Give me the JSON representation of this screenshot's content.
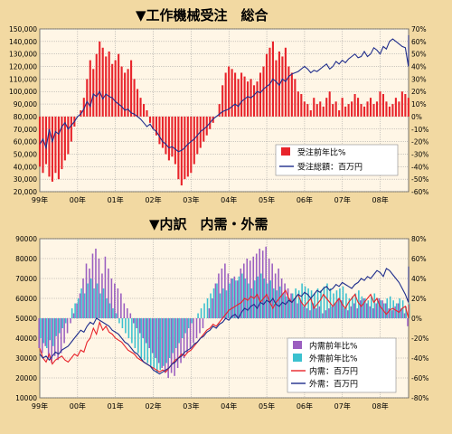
{
  "colors": {
    "background": "#f2d9a2",
    "plot_bg": "#fff6e6",
    "grid": "#999999",
    "red_bar": "#e8242b",
    "navy_line": "#1f2d8c",
    "purple_bar": "#9b5fc0",
    "cyan_bar": "#3bc1cf",
    "red_line": "#e8242b"
  },
  "chart_data": [
    {
      "type": "bar",
      "title": "▼工作機械受注　総合",
      "x_labels": [
        "99年",
        "00年",
        "01年",
        "02年",
        "03年",
        "04年",
        "05年",
        "06年",
        "07年",
        "08年"
      ],
      "x_range": [
        1999.0,
        2008.75
      ],
      "y_left_ticks": [
        "150,000",
        "140,000",
        "130,000",
        "120,000",
        "110,000",
        "100,000",
        "90,000",
        "80,000",
        "70,000",
        "60,000",
        "50,000",
        "40,000",
        "30,000",
        "20,000"
      ],
      "y_left_range": [
        20000,
        150000
      ],
      "y_right_ticks": [
        "70%",
        "60%",
        "50%",
        "40%",
        "30%",
        "20%",
        "10%",
        "0%",
        "-10%",
        "-20%",
        "-30%",
        "-40%",
        "-50%",
        "-60%"
      ],
      "y_right_range": [
        -60,
        70
      ],
      "legend": [
        "受注前年比%",
        "受注総額：百万円"
      ],
      "series": [
        {
          "name": "受注前年比%",
          "kind": "bar",
          "axis": "right",
          "start": 1999.0,
          "step": 0.0833,
          "values": [
            -40,
            -45,
            -38,
            -48,
            -52,
            -45,
            -50,
            -42,
            -35,
            -30,
            -20,
            -8,
            0,
            5,
            15,
            30,
            45,
            38,
            50,
            60,
            55,
            48,
            52,
            42,
            45,
            50,
            40,
            35,
            38,
            45,
            30,
            22,
            15,
            10,
            5,
            -5,
            -10,
            -15,
            -22,
            -25,
            -30,
            -35,
            -32,
            -38,
            -50,
            -55,
            -50,
            -48,
            -45,
            -38,
            -30,
            -25,
            -20,
            -15,
            -10,
            -5,
            0,
            10,
            25,
            35,
            40,
            38,
            35,
            30,
            35,
            32,
            28,
            30,
            25,
            28,
            35,
            40,
            50,
            55,
            60,
            45,
            52,
            48,
            55,
            40,
            35,
            30,
            20,
            18,
            12,
            10,
            5,
            15,
            10,
            12,
            8,
            15,
            20,
            10,
            12,
            5,
            15,
            8,
            10,
            12,
            18,
            15,
            10,
            8,
            12,
            15,
            10,
            12,
            20,
            18,
            12,
            8,
            10,
            15,
            12,
            20,
            18,
            15,
            10,
            -5,
            5,
            2,
            5,
            8,
            3
          ]
        },
        {
          "name": "受注総額：百万円",
          "kind": "line",
          "axis": "left",
          "start": 1999.0,
          "step": 0.0833,
          "values": [
            58000,
            62000,
            55000,
            70000,
            60000,
            68000,
            66000,
            72000,
            75000,
            70000,
            73000,
            76000,
            80000,
            82000,
            86000,
            92000,
            88000,
            98000,
            96000,
            100000,
            94000,
            98000,
            96000,
            95000,
            92000,
            90000,
            88000,
            85000,
            86000,
            83000,
            82000,
            80000,
            78000,
            75000,
            72000,
            74000,
            70000,
            68000,
            64000,
            60000,
            58000,
            55000,
            56000,
            54000,
            52000,
            53000,
            55000,
            58000,
            60000,
            62000,
            65000,
            68000,
            70000,
            72000,
            75000,
            78000,
            80000,
            82000,
            84000,
            85000,
            86000,
            88000,
            90000,
            88000,
            92000,
            94000,
            96000,
            95000,
            97000,
            100000,
            99000,
            102000,
            104000,
            106000,
            110000,
            108000,
            105000,
            110000,
            108000,
            112000,
            114000,
            115000,
            116000,
            118000,
            120000,
            118000,
            115000,
            117000,
            116000,
            118000,
            120000,
            122000,
            118000,
            120000,
            124000,
            122000,
            125000,
            123000,
            126000,
            128000,
            130000,
            127000,
            128000,
            132000,
            128000,
            130000,
            135000,
            133000,
            130000,
            136000,
            134000,
            140000,
            142000,
            140000,
            138000,
            136000,
            135000,
            120000,
            130000,
            145000
          ]
        }
      ]
    },
    {
      "type": "bar",
      "title": "▼内訳　内需・外需",
      "x_labels": [
        "99年",
        "00年",
        "01年",
        "02年",
        "03年",
        "04年",
        "05年",
        "06年",
        "07年",
        "08年"
      ],
      "x_range": [
        1999.0,
        2008.75
      ],
      "y_left_ticks": [
        "90000",
        "80000",
        "70000",
        "60000",
        "50000",
        "40000",
        "30000",
        "20000",
        "10000"
      ],
      "y_left_range": [
        10000,
        90000
      ],
      "y_right_ticks": [
        "80%",
        "60%",
        "40%",
        "20%",
        "0%",
        "-20%",
        "-40%",
        "-60%",
        "-80%"
      ],
      "y_right_range": [
        -80,
        80
      ],
      "legend": [
        "内需前年比%",
        "外需前年比%",
        "内需：百万円",
        "外需：百万円"
      ],
      "series": [
        {
          "name": "内需前年比%",
          "kind": "bar",
          "axis": "right",
          "start": 1999.0,
          "step": 0.0833,
          "values": [
            -30,
            -35,
            -28,
            -40,
            -45,
            -38,
            -42,
            -35,
            -25,
            -15,
            -5,
            5,
            15,
            25,
            40,
            55,
            50,
            65,
            70,
            60,
            45,
            62,
            50,
            40,
            35,
            30,
            25,
            15,
            10,
            5,
            -5,
            -10,
            -15,
            -20,
            -25,
            -30,
            -35,
            -40,
            -45,
            -50,
            -55,
            -60,
            -55,
            -58,
            -50,
            -45,
            -40,
            -35,
            -30,
            -25,
            -20,
            -15,
            -10,
            0,
            10,
            20,
            35,
            45,
            50,
            55,
            45,
            40,
            42,
            38,
            50,
            55,
            60,
            58,
            62,
            65,
            70,
            68,
            72,
            60,
            55,
            45,
            50,
            40,
            35,
            30,
            25,
            20,
            15,
            18,
            12,
            10,
            8,
            15,
            10,
            12,
            5,
            8,
            10,
            12,
            15,
            20,
            18,
            10,
            8,
            12,
            15,
            10,
            18,
            20,
            15,
            12,
            10,
            15,
            20,
            18,
            15,
            10,
            8,
            12,
            15,
            10,
            5,
            -8,
            5,
            -5,
            3,
            -2
          ]
        },
        {
          "name": "外需前年比%",
          "kind": "bar",
          "axis": "right",
          "start": 1999.0,
          "step": 0.0833,
          "values": [
            -20,
            -25,
            -30,
            -22,
            -28,
            -18,
            -15,
            -10,
            -5,
            0,
            10,
            15,
            20,
            30,
            25,
            35,
            40,
            30,
            35,
            25,
            30,
            20,
            15,
            10,
            5,
            -5,
            -10,
            -15,
            -20,
            -25,
            -30,
            -35,
            -40,
            -42,
            -45,
            -48,
            -50,
            -55,
            -52,
            -48,
            -45,
            -40,
            -35,
            -30,
            -25,
            -20,
            -15,
            -10,
            -5,
            0,
            5,
            10,
            15,
            20,
            25,
            30,
            35,
            25,
            30,
            28,
            35,
            40,
            38,
            42,
            45,
            40,
            35,
            30,
            38,
            42,
            45,
            40,
            35,
            38,
            30,
            28,
            32,
            25,
            22,
            20,
            25,
            30,
            28,
            35,
            32,
            30,
            28,
            25,
            30,
            28,
            32,
            35,
            30,
            25,
            28,
            30,
            32,
            25,
            20,
            22,
            25,
            28,
            22,
            20,
            18,
            22,
            25,
            20,
            18,
            15,
            20,
            22,
            18,
            15,
            20,
            18,
            12,
            15,
            10,
            12
          ]
        },
        {
          "name": "内需：百万円",
          "kind": "line",
          "axis": "left",
          "start": 1999.0,
          "step": 0.0833,
          "values": [
            35000,
            30000,
            28000,
            32000,
            27000,
            29000,
            30000,
            31000,
            29000,
            28000,
            30000,
            32000,
            31000,
            34000,
            33000,
            38000,
            40000,
            45000,
            42000,
            48000,
            44000,
            46000,
            43000,
            42000,
            40000,
            39000,
            38000,
            36000,
            34000,
            33000,
            32000,
            30000,
            29000,
            28000,
            27000,
            26000,
            25000,
            24000,
            23000,
            24000,
            23000,
            25000,
            27000,
            29000,
            30000,
            32000,
            31000,
            33000,
            34000,
            36000,
            38000,
            40000,
            42000,
            44000,
            45000,
            47000,
            46000,
            48000,
            50000,
            52000,
            54000,
            55000,
            56000,
            57000,
            58000,
            60000,
            59000,
            61000,
            60000,
            62000,
            58000,
            60000,
            62000,
            58000,
            55000,
            58000,
            60000,
            62000,
            64000,
            60000,
            58000,
            60000,
            62000,
            58000,
            56000,
            58000,
            60000,
            55000,
            57000,
            59000,
            62000,
            60000,
            58000,
            56000,
            58000,
            60000,
            57000,
            55000,
            58000,
            60000,
            62000,
            58000,
            56000,
            58000,
            60000,
            62000,
            58000,
            60000,
            56000,
            54000,
            52000,
            54000,
            55000,
            54000,
            53000,
            55000,
            56000,
            50000,
            55000,
            57000
          ]
        },
        {
          "name": "外需：百万円",
          "kind": "line",
          "axis": "left",
          "start": 1999.0,
          "step": 0.0833,
          "values": [
            32000,
            30000,
            31000,
            29000,
            31000,
            33000,
            32000,
            34000,
            35000,
            36000,
            38000,
            40000,
            42000,
            44000,
            43000,
            46000,
            48000,
            47000,
            50000,
            49000,
            48000,
            47000,
            46000,
            44000,
            43000,
            42000,
            40000,
            38000,
            37000,
            35000,
            33000,
            32000,
            30000,
            28000,
            27000,
            26000,
            24000,
            23000,
            22000,
            23000,
            24000,
            25000,
            27000,
            28000,
            30000,
            31000,
            33000,
            34000,
            35000,
            37000,
            38000,
            40000,
            41000,
            43000,
            44000,
            46000,
            45000,
            47000,
            48000,
            50000,
            49000,
            51000,
            52000,
            50000,
            53000,
            55000,
            54000,
            56000,
            57000,
            55000,
            58000,
            57000,
            59000,
            58000,
            60000,
            57000,
            56000,
            58000,
            57000,
            59000,
            58000,
            60000,
            62000,
            61000,
            63000,
            62000,
            60000,
            62000,
            64000,
            63000,
            65000,
            66000,
            64000,
            65000,
            67000,
            66000,
            68000,
            67000,
            66000,
            65000,
            67000,
            68000,
            70000,
            69000,
            71000,
            70000,
            72000,
            74000,
            73000,
            71000,
            75000,
            74000,
            72000,
            70000,
            68000,
            65000,
            62000,
            58000,
            66000,
            76000
          ]
        }
      ]
    }
  ]
}
